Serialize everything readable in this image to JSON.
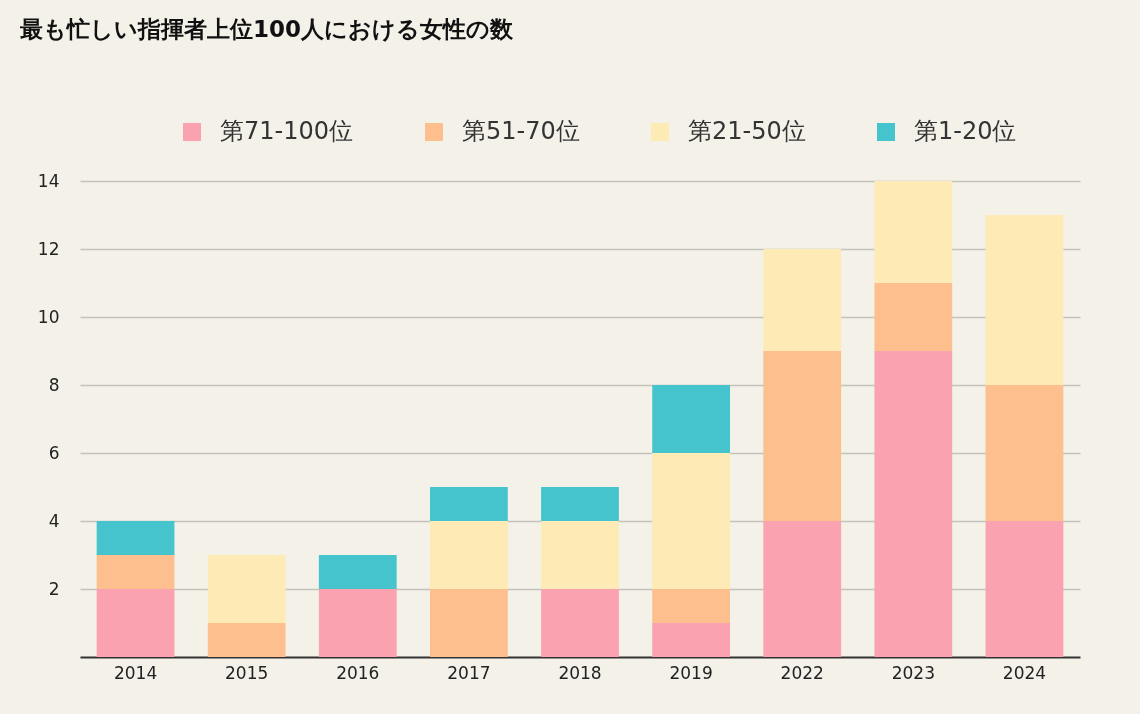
{
  "chart_data": {
    "type": "bar",
    "title": "最も忙しい指揮者上位100人における女性の数",
    "categories": [
      "2014",
      "2015",
      "2016",
      "2017",
      "2018",
      "2019",
      "2022",
      "2023",
      "2024"
    ],
    "stacked": true,
    "series": [
      {
        "name": "第71-100位",
        "color": "#fba2b0",
        "values": [
          2,
          0,
          2,
          0,
          2,
          1,
          4,
          9,
          4
        ]
      },
      {
        "name": "第51-70位",
        "color": "#fdbf8d",
        "values": [
          1,
          1,
          0,
          2,
          0,
          1,
          5,
          2,
          4
        ]
      },
      {
        "name": "第21-50位",
        "color": "#feeab4",
        "values": [
          0,
          2,
          0,
          2,
          2,
          4,
          3,
          3,
          5
        ]
      },
      {
        "name": "第1-20位",
        "color": "#46c4cd",
        "values": [
          1,
          0,
          1,
          1,
          1,
          2,
          0,
          0,
          0
        ]
      }
    ],
    "ylim": [
      0,
      14
    ],
    "yticks": [
      2,
      4,
      6,
      8,
      10,
      12,
      14
    ],
    "grid": "y",
    "legend": "top"
  }
}
